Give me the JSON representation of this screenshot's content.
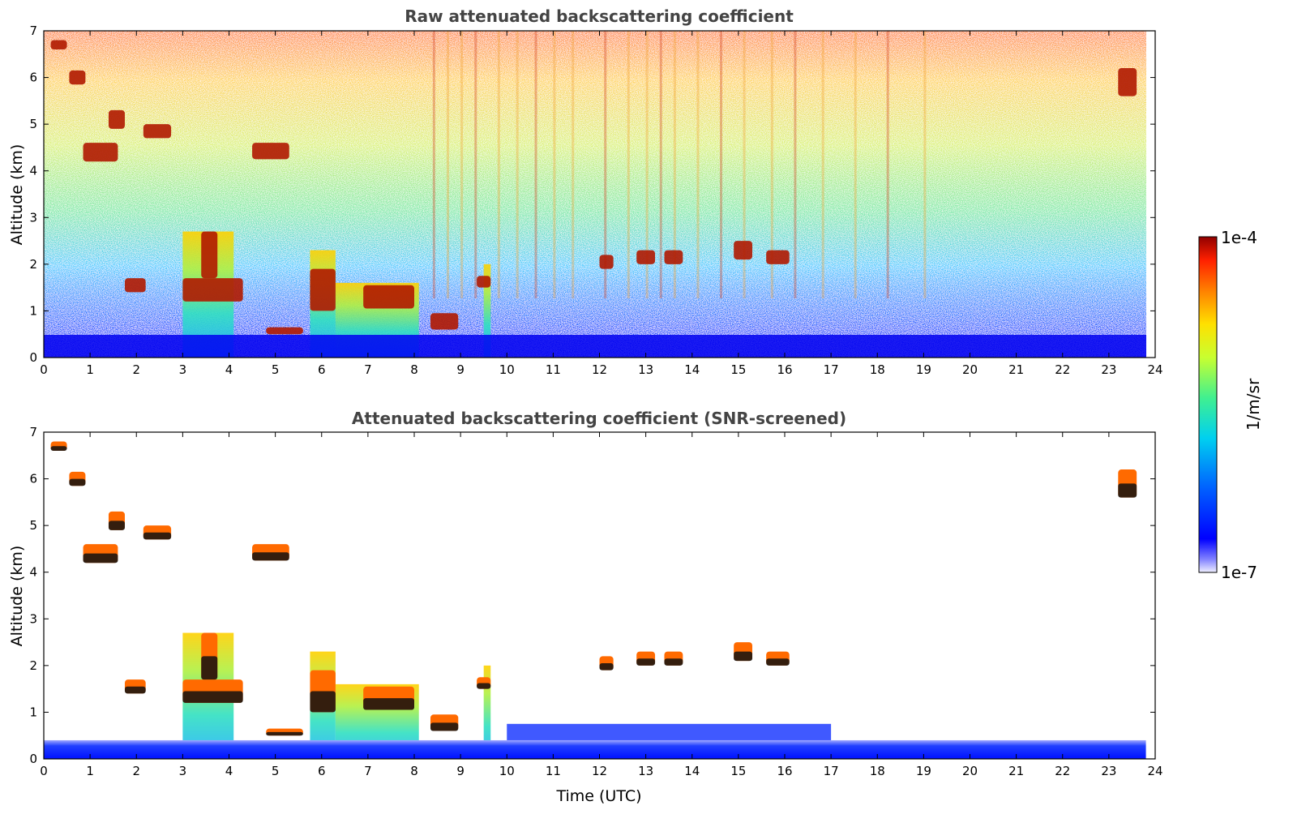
{
  "chart_data": [
    {
      "type": "heatmap",
      "title": "Raw attenuated backscattering coefficient",
      "xlabel": "",
      "ylabel": "Altitude (km)",
      "xlim": [
        0,
        24
      ],
      "ylim": [
        0,
        7
      ],
      "xticks": [
        0,
        1,
        2,
        3,
        4,
        5,
        6,
        7,
        8,
        9,
        10,
        11,
        12,
        13,
        14,
        15,
        16,
        17,
        18,
        19,
        20,
        21,
        22,
        23,
        24
      ],
      "yticks": [
        0,
        1,
        2,
        3,
        4,
        5,
        6,
        7
      ],
      "cloud_layers": [
        {
          "start": 0.15,
          "end": 0.5,
          "base": 6.6,
          "top": 6.8
        },
        {
          "start": 0.55,
          "end": 0.9,
          "base": 5.85,
          "top": 6.15
        },
        {
          "start": 0.85,
          "end": 1.6,
          "base": 4.2,
          "top": 4.6
        },
        {
          "start": 1.4,
          "end": 1.75,
          "base": 4.9,
          "top": 5.3
        },
        {
          "start": 2.15,
          "end": 2.75,
          "base": 4.7,
          "top": 5.0
        },
        {
          "start": 1.75,
          "end": 2.2,
          "base": 1.4,
          "top": 1.7
        },
        {
          "start": 3.0,
          "end": 4.3,
          "base": 1.2,
          "top": 1.7
        },
        {
          "start": 3.4,
          "end": 3.75,
          "base": 1.7,
          "top": 2.7
        },
        {
          "start": 4.5,
          "end": 5.3,
          "base": 4.25,
          "top": 4.6
        },
        {
          "start": 4.8,
          "end": 5.6,
          "base": 0.5,
          "top": 0.65
        },
        {
          "start": 5.75,
          "end": 6.3,
          "base": 1.0,
          "top": 1.9
        },
        {
          "start": 6.9,
          "end": 8.0,
          "base": 1.05,
          "top": 1.55
        },
        {
          "start": 8.35,
          "end": 8.95,
          "base": 0.6,
          "top": 0.95
        },
        {
          "start": 9.35,
          "end": 9.65,
          "base": 1.5,
          "top": 1.75
        },
        {
          "start": 12.0,
          "end": 12.3,
          "base": 1.9,
          "top": 2.2
        },
        {
          "start": 12.8,
          "end": 13.2,
          "base": 2.0,
          "top": 2.3
        },
        {
          "start": 13.4,
          "end": 13.8,
          "base": 2.0,
          "top": 2.3
        },
        {
          "start": 14.9,
          "end": 15.3,
          "base": 2.1,
          "top": 2.5
        },
        {
          "start": 15.6,
          "end": 16.1,
          "base": 2.0,
          "top": 2.3
        },
        {
          "start": 23.2,
          "end": 23.6,
          "base": 5.6,
          "top": 6.2
        }
      ],
      "boundary_layer_top_km": 0.4
    },
    {
      "type": "heatmap",
      "title": "Attenuated backscattering coefficient (SNR-screened)",
      "xlabel": "Time (UTC)",
      "ylabel": "Altitude (km)",
      "xlim": [
        0,
        24
      ],
      "ylim": [
        0,
        7
      ],
      "xticks": [
        0,
        1,
        2,
        3,
        4,
        5,
        6,
        7,
        8,
        9,
        10,
        11,
        12,
        13,
        14,
        15,
        16,
        17,
        18,
        19,
        20,
        21,
        22,
        23,
        24
      ],
      "yticks": [
        0,
        1,
        2,
        3,
        4,
        5,
        6,
        7
      ]
    }
  ],
  "colorbar": {
    "max_label": "1e-4",
    "min_label": "1e-7",
    "unit_label": "1/m/sr",
    "colormap": [
      "#0000ff",
      "#0050ff",
      "#00a0ff",
      "#00e0e0",
      "#40f080",
      "#c0ff40",
      "#ffe000",
      "#ff8000",
      "#ff2000",
      "#a00000"
    ]
  }
}
